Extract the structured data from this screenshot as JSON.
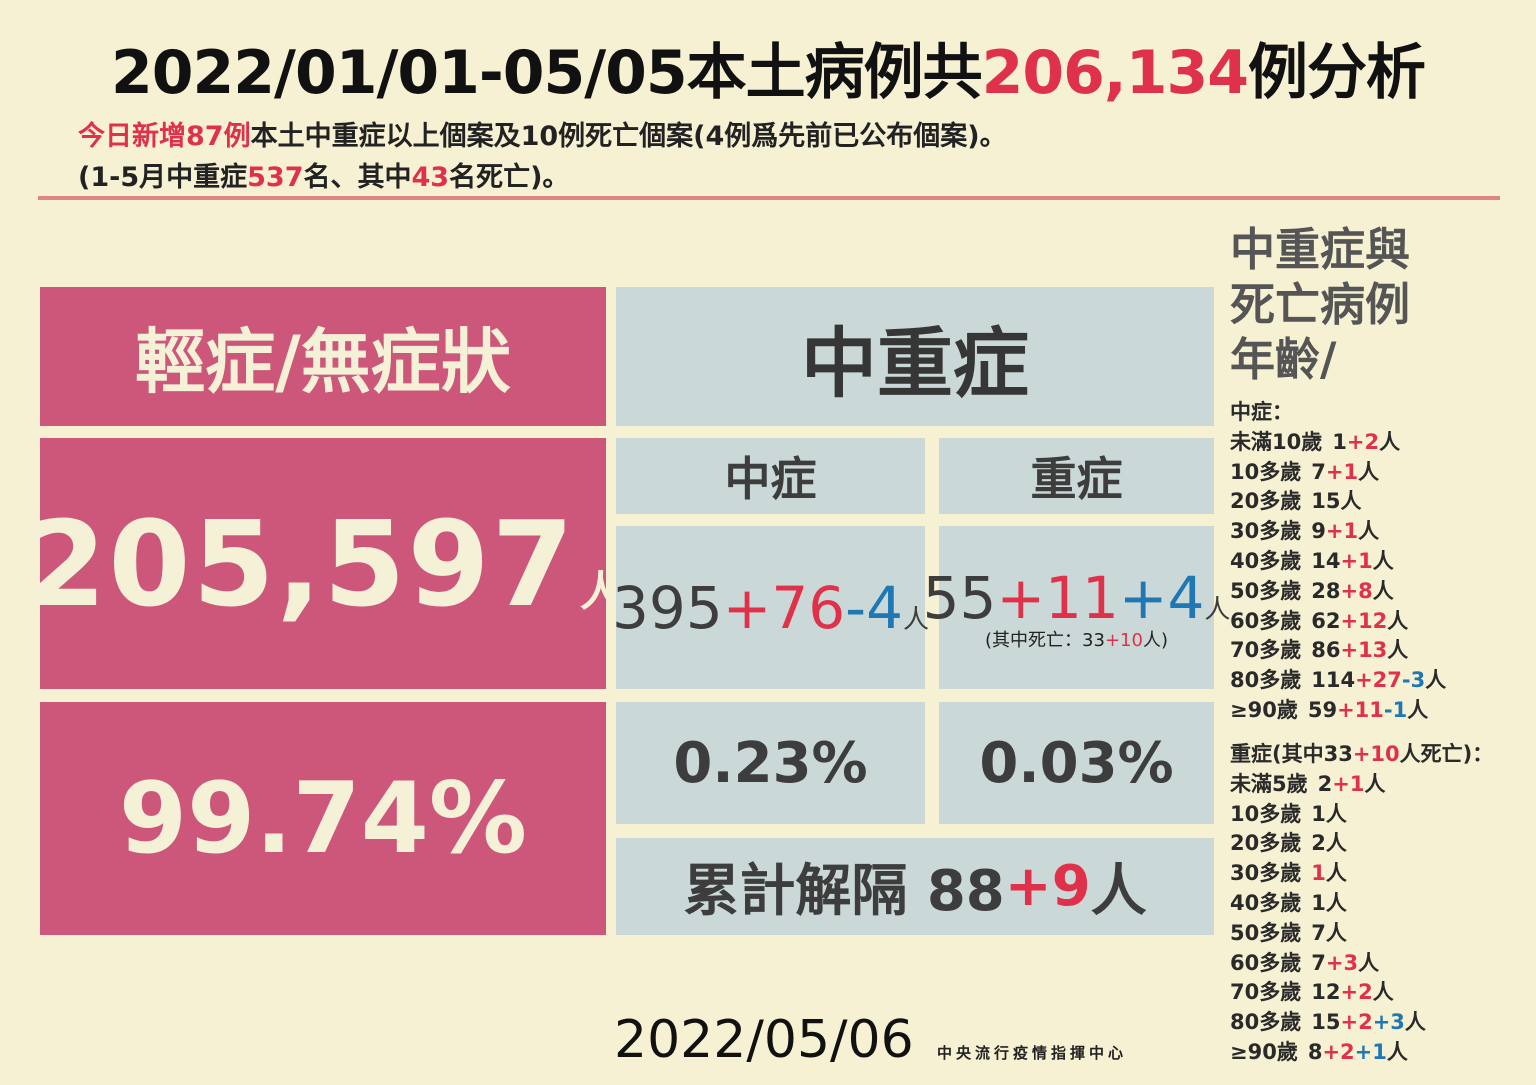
{
  "title": {
    "prefix": "2022/01/01-05/05本土病例共",
    "total": "206,134",
    "suffix": "例分析"
  },
  "subtitle1": {
    "new_cases": "今日新增87例",
    "rest": "本土中重症以上個案及10例死亡個案(4例爲先前已公布個案)。"
  },
  "subtitle2": {
    "a": "(1-5月中重症",
    "b": "537",
    "c": "名、其中",
    "d": "43",
    "e": "名死亡)。"
  },
  "mild": {
    "header": "輕症/無症狀",
    "count": "205,597",
    "unit": "人",
    "percent": "99.74%"
  },
  "severe_block": {
    "header": "中重症",
    "moderate_label": "中症",
    "severe_label": "重症",
    "moderate_count": {
      "base": "395",
      "plus": "+76",
      "minus": "-4",
      "unit": "人"
    },
    "severe_count": {
      "base": "55",
      "plus": "+11",
      "plus2": "+4",
      "unit": "人"
    },
    "death_note": {
      "a": "(其中死亡：33",
      "b": "+10",
      "c": "人)"
    },
    "moderate_percent": "0.23%",
    "severe_percent": "0.03%",
    "discharged": {
      "label": "累計解隔 88",
      "plus": "+9",
      "unit": "人"
    }
  },
  "side": {
    "title_line1": "中重症與",
    "title_line2": "死亡病例",
    "title_line3": "年齡/",
    "moderate_heading": "中症：",
    "moderate_rows": [
      {
        "age": "未滿10歲",
        "base": "1",
        "plus": "+2",
        "minus": "",
        "unit": "人"
      },
      {
        "age": "10多歲",
        "base": "7",
        "plus": "+1",
        "minus": "",
        "unit": "人"
      },
      {
        "age": "20多歲",
        "base": "15",
        "plus": "",
        "minus": "",
        "unit": "人"
      },
      {
        "age": "30多歲",
        "base": "9",
        "plus": "+1",
        "minus": "",
        "unit": "人"
      },
      {
        "age": "40多歲",
        "base": "14",
        "plus": "+1",
        "minus": "",
        "unit": "人"
      },
      {
        "age": "50多歲",
        "base": "28",
        "plus": "+8",
        "minus": "",
        "unit": "人"
      },
      {
        "age": "60多歲",
        "base": "62",
        "plus": "+12",
        "minus": "",
        "unit": "人"
      },
      {
        "age": "70多歲",
        "base": "86",
        "plus": "+13",
        "minus": "",
        "unit": "人"
      },
      {
        "age": "80多歲",
        "base": "114",
        "plus": "+27",
        "minus": "-3",
        "unit": "人"
      },
      {
        "age": "≥90歲",
        "base": "59",
        "plus": "+11",
        "minus": "-1",
        "unit": "人"
      }
    ],
    "severe_heading": {
      "a": "重症(其中33",
      "b": "+10",
      "c": "人死亡)："
    },
    "severe_rows": [
      {
        "age": "未滿5歲",
        "base": "2",
        "plus": "+1",
        "plus2": "",
        "unit": "人"
      },
      {
        "age": "10多歲",
        "base": "1",
        "plus": "",
        "plus2": "",
        "unit": "人"
      },
      {
        "age": "20多歲",
        "base": "2",
        "plus": "",
        "plus2": "",
        "unit": "人"
      },
      {
        "age": "30多歲",
        "base": "",
        "plus": "1",
        "plus2": "",
        "unit": "人"
      },
      {
        "age": "40多歲",
        "base": "1",
        "plus": "",
        "plus2": "",
        "unit": "人"
      },
      {
        "age": "50多歲",
        "base": "7",
        "plus": "",
        "plus2": "",
        "unit": "人"
      },
      {
        "age": "60多歲",
        "base": "7",
        "plus": "+3",
        "plus2": "",
        "unit": "人"
      },
      {
        "age": "70多歲",
        "base": "12",
        "plus": "+2",
        "plus2": "",
        "unit": "人"
      },
      {
        "age": "80多歲",
        "base": "15",
        "plus": "+2",
        "plus2": "+3",
        "unit": "人"
      },
      {
        "age": "≥90歲",
        "base": "8",
        "plus": "+2",
        "plus2": "+1",
        "unit": "人"
      }
    ]
  },
  "footer": {
    "date": "2022/05/06",
    "org": "中央流行疫情指揮中心"
  },
  "colors": {
    "background": "#f6f1d3",
    "pink": "#cd567b",
    "grey": "#cad8d8",
    "red": "#e0314b",
    "blue": "#1f77b4",
    "rule": "#e08584"
  }
}
